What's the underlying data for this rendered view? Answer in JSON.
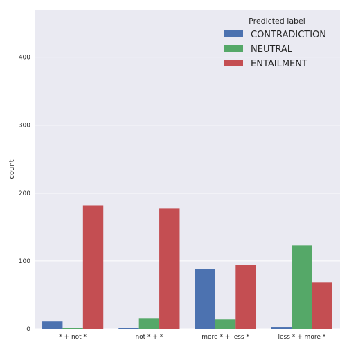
{
  "chart_data": {
    "type": "bar",
    "categories": [
      "* + not *",
      "not * + *",
      "more * + less *",
      "less * + more *"
    ],
    "series": [
      {
        "name": "CONTRADICTION",
        "color": "#4c72b0",
        "values": [
          11,
          2,
          88,
          3
        ]
      },
      {
        "name": "NEUTRAL",
        "color": "#55a868",
        "values": [
          2,
          16,
          14,
          123
        ]
      },
      {
        "name": "ENTAILMENT",
        "color": "#c44e52",
        "values": [
          182,
          177,
          94,
          69
        ]
      }
    ],
    "title": "",
    "xlabel": "",
    "ylabel": "count",
    "ylim": [
      0,
      470
    ],
    "yticks": [
      0,
      100,
      200,
      300,
      400
    ],
    "grid": true,
    "legend": {
      "title": "Predicted label",
      "placement": "top-right"
    },
    "background": "#eaeaf2"
  }
}
